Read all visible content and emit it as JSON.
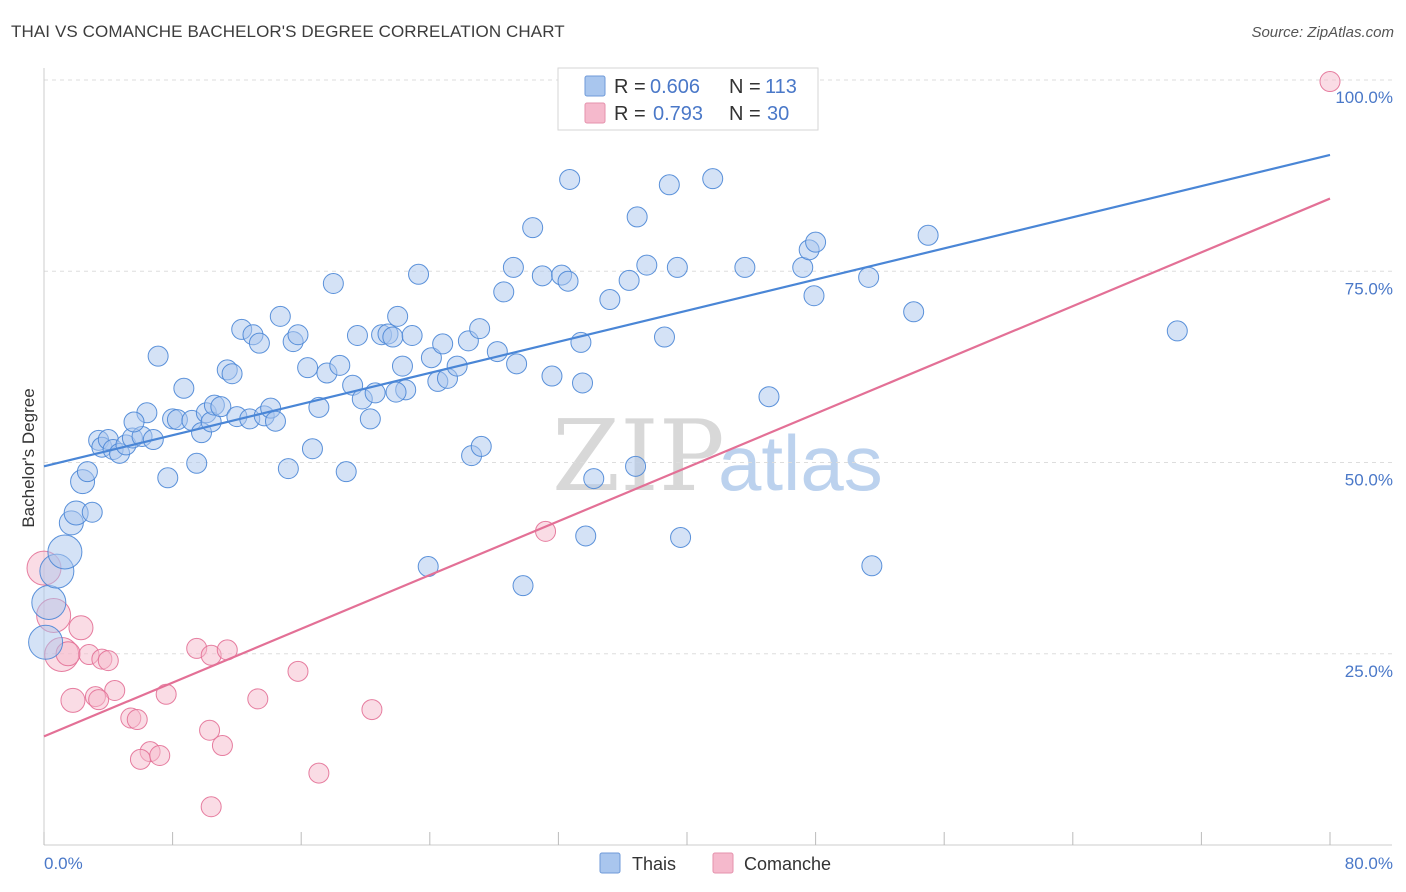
{
  "header": {
    "title": "THAI VS COMANCHE BACHELOR'S DEGREE CORRELATION CHART",
    "source": "Source: ZipAtlas.com"
  },
  "watermark": {
    "zip": "ZIP",
    "atlas": "atlas"
  },
  "colors": {
    "thai": "#4a86d6",
    "thai_fill": "#a9c6ee",
    "comanche": "#e37096",
    "comanche_fill": "#f5b9cc",
    "axis_label": "#4a78c8",
    "grid": "#dddddd"
  },
  "legend": {
    "rows": [
      {
        "r_label": "R =",
        "r_value": "0.606",
        "n_label": "N =",
        "n_value": "113"
      },
      {
        "r_label": "R =",
        "r_value": "0.793",
        "n_label": "N =",
        "n_value": "30"
      }
    ]
  },
  "bottom_legend": {
    "thai": "Thais",
    "comanche": "Comanche"
  },
  "chart_data": {
    "type": "scatter",
    "title": "THAI VS COMANCHE BACHELOR'S DEGREE CORRELATION CHART",
    "xlabel": "",
    "ylabel": "Bachelor's Degree",
    "xlim": [
      0,
      80
    ],
    "ylim": [
      0,
      100
    ],
    "x_tick_labels": [
      "0.0%",
      "80.0%"
    ],
    "y_tick_labels": [
      "25.0%",
      "50.0%",
      "75.0%",
      "100.0%"
    ],
    "y_ticks": [
      25,
      50,
      75,
      100
    ],
    "series": [
      {
        "name": "Thais",
        "r": 0.606,
        "n": 113,
        "trend": {
          "x0": 0,
          "y0": 49.5,
          "x1": 80,
          "y1": 90.2
        },
        "points": [
          [
            0.1,
            26.5
          ],
          [
            0.3,
            31.7
          ],
          [
            0.8,
            35.8
          ],
          [
            1.3,
            38.3
          ],
          [
            1.7,
            42.1
          ],
          [
            2.0,
            43.4
          ],
          [
            2.4,
            47.5
          ],
          [
            2.7,
            48.8
          ],
          [
            3.0,
            43.5
          ],
          [
            3.4,
            52.9
          ],
          [
            3.6,
            52.0
          ],
          [
            4.0,
            53.0
          ],
          [
            4.3,
            51.7
          ],
          [
            4.7,
            51.2
          ],
          [
            5.1,
            52.3
          ],
          [
            5.5,
            53.2
          ],
          [
            6.1,
            53.4
          ],
          [
            6.4,
            56.5
          ],
          [
            5.6,
            55.3
          ],
          [
            6.8,
            53.0
          ],
          [
            7.1,
            63.9
          ],
          [
            7.7,
            48.0
          ],
          [
            8.0,
            55.7
          ],
          [
            8.3,
            55.6
          ],
          [
            8.7,
            59.7
          ],
          [
            9.2,
            55.5
          ],
          [
            9.5,
            49.9
          ],
          [
            9.8,
            53.9
          ],
          [
            10.1,
            56.5
          ],
          [
            10.4,
            55.3
          ],
          [
            10.6,
            57.5
          ],
          [
            11.0,
            57.3
          ],
          [
            11.4,
            62.1
          ],
          [
            11.7,
            61.6
          ],
          [
            12.0,
            56.0
          ],
          [
            12.3,
            67.4
          ],
          [
            12.8,
            55.7
          ],
          [
            13.0,
            66.7
          ],
          [
            13.4,
            65.6
          ],
          [
            13.7,
            56.1
          ],
          [
            14.1,
            57.1
          ],
          [
            14.4,
            55.4
          ],
          [
            14.7,
            69.1
          ],
          [
            15.2,
            49.2
          ],
          [
            15.5,
            65.8
          ],
          [
            15.8,
            66.7
          ],
          [
            16.4,
            62.4
          ],
          [
            16.7,
            51.8
          ],
          [
            17.1,
            57.2
          ],
          [
            17.6,
            61.7
          ],
          [
            18.0,
            73.4
          ],
          [
            18.4,
            62.7
          ],
          [
            18.8,
            48.8
          ],
          [
            19.2,
            60.1
          ],
          [
            19.5,
            66.6
          ],
          [
            19.8,
            58.3
          ],
          [
            20.3,
            55.7
          ],
          [
            20.6,
            59.1
          ],
          [
            21.0,
            66.7
          ],
          [
            21.4,
            66.8
          ],
          [
            21.7,
            66.4
          ],
          [
            22.0,
            69.1
          ],
          [
            22.3,
            62.6
          ],
          [
            22.5,
            59.5
          ],
          [
            22.9,
            66.6
          ],
          [
            23.3,
            74.6
          ],
          [
            24.1,
            63.7
          ],
          [
            24.5,
            60.6
          ],
          [
            24.8,
            65.5
          ],
          [
            25.1,
            61.0
          ],
          [
            25.7,
            62.6
          ],
          [
            26.6,
            50.9
          ],
          [
            27.2,
            52.1
          ],
          [
            26.4,
            65.9
          ],
          [
            27.1,
            67.5
          ],
          [
            28.2,
            64.5
          ],
          [
            28.6,
            72.3
          ],
          [
            29.2,
            75.5
          ],
          [
            29.4,
            62.9
          ],
          [
            29.8,
            33.9
          ],
          [
            30.4,
            80.7
          ],
          [
            31.0,
            74.4
          ],
          [
            31.6,
            61.3
          ],
          [
            32.2,
            74.5
          ],
          [
            32.6,
            73.7
          ],
          [
            32.7,
            87.0
          ],
          [
            33.4,
            65.7
          ],
          [
            33.5,
            60.4
          ],
          [
            33.7,
            40.4
          ],
          [
            34.2,
            47.9
          ],
          [
            35.2,
            71.3
          ],
          [
            36.4,
            73.8
          ],
          [
            36.8,
            49.5
          ],
          [
            36.9,
            82.1
          ],
          [
            37.5,
            75.8
          ],
          [
            38.6,
            66.4
          ],
          [
            38.9,
            86.3
          ],
          [
            39.4,
            75.5
          ],
          [
            39.6,
            40.2
          ],
          [
            41.6,
            87.1
          ],
          [
            43.6,
            75.5
          ],
          [
            45.1,
            58.6
          ],
          [
            47.2,
            75.5
          ],
          [
            47.6,
            77.8
          ],
          [
            47.9,
            71.8
          ],
          [
            48.0,
            78.8
          ],
          [
            51.3,
            74.2
          ],
          [
            51.5,
            36.5
          ],
          [
            54.1,
            69.7
          ],
          [
            55.0,
            79.7
          ],
          [
            70.5,
            67.2
          ],
          [
            21.9,
            59.2
          ],
          [
            23.9,
            36.4
          ]
        ]
      },
      {
        "name": "Comanche",
        "r": 0.793,
        "n": 30,
        "trend": {
          "x0": 0,
          "y0": 14.2,
          "x1": 80,
          "y1": 84.5
        },
        "points": [
          [
            0.0,
            36.2
          ],
          [
            0.6,
            30.0
          ],
          [
            2.3,
            28.4
          ],
          [
            1.1,
            24.9
          ],
          [
            1.5,
            25.0
          ],
          [
            2.8,
            24.9
          ],
          [
            3.6,
            24.3
          ],
          [
            4.0,
            24.1
          ],
          [
            4.4,
            20.2
          ],
          [
            1.8,
            18.9
          ],
          [
            3.2,
            19.4
          ],
          [
            3.4,
            19.0
          ],
          [
            5.4,
            16.6
          ],
          [
            5.8,
            16.4
          ],
          [
            6.6,
            12.2
          ],
          [
            6.0,
            11.2
          ],
          [
            7.2,
            11.7
          ],
          [
            7.6,
            19.7
          ],
          [
            9.5,
            25.7
          ],
          [
            10.4,
            24.8
          ],
          [
            11.4,
            25.5
          ],
          [
            13.3,
            19.1
          ],
          [
            15.8,
            22.7
          ],
          [
            10.3,
            15.0
          ],
          [
            11.1,
            13.0
          ],
          [
            17.1,
            9.4
          ],
          [
            20.4,
            17.7
          ],
          [
            10.4,
            5.0
          ],
          [
            31.2,
            41.0
          ],
          [
            80.0,
            99.8
          ]
        ]
      }
    ]
  }
}
